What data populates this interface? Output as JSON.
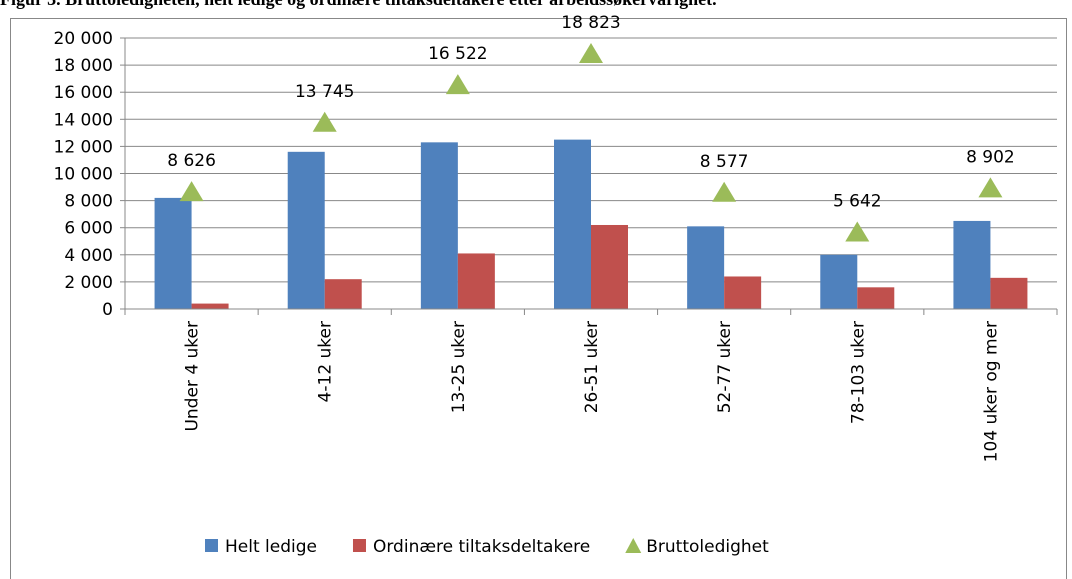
{
  "chart_data": {
    "type": "bar",
    "title": "Figur 3. Bruttoledigheten, helt ledige og ordinære tiltaksdeltakere etter arbeidssøkervarighet.",
    "categories": [
      "Under 4 uker",
      "4-12 uker",
      "13-25 uker",
      "26-51 uker",
      "52-77 uker",
      "78-103 uker",
      "104 uker og mer"
    ],
    "series": [
      {
        "name": "Helt ledige",
        "type": "bar",
        "color": "#4f81bd",
        "values": [
          8200,
          11600,
          12300,
          12500,
          6100,
          4000,
          6500
        ]
      },
      {
        "name": "Ordinære tiltaksdeltakere",
        "type": "bar",
        "color": "#c0504d",
        "values": [
          400,
          2200,
          4100,
          6200,
          2400,
          1600,
          2300
        ]
      },
      {
        "name": "Bruttoledighet",
        "type": "scatter",
        "marker": "triangle",
        "color": "#9bbb59",
        "values": [
          8626,
          13745,
          16522,
          18823,
          8577,
          5642,
          8902
        ],
        "value_labels": [
          "8 626",
          "13 745",
          "16 522",
          "18 823",
          "8 577",
          "5 642",
          "8 902"
        ]
      }
    ],
    "ylim": [
      0,
      20000
    ],
    "yticks": [
      {
        "value": 0,
        "label": "0"
      },
      {
        "value": 2000,
        "label": "2 000"
      },
      {
        "value": 4000,
        "label": "4 000"
      },
      {
        "value": 6000,
        "label": "6 000"
      },
      {
        "value": 8000,
        "label": "8 000"
      },
      {
        "value": 10000,
        "label": "10 000"
      },
      {
        "value": 12000,
        "label": "12 000"
      },
      {
        "value": 14000,
        "label": "14 000"
      },
      {
        "value": 16000,
        "label": "16 000"
      },
      {
        "value": 18000,
        "label": "18 000"
      },
      {
        "value": 20000,
        "label": "20 000"
      }
    ],
    "grid": true,
    "legend": "bottom"
  }
}
